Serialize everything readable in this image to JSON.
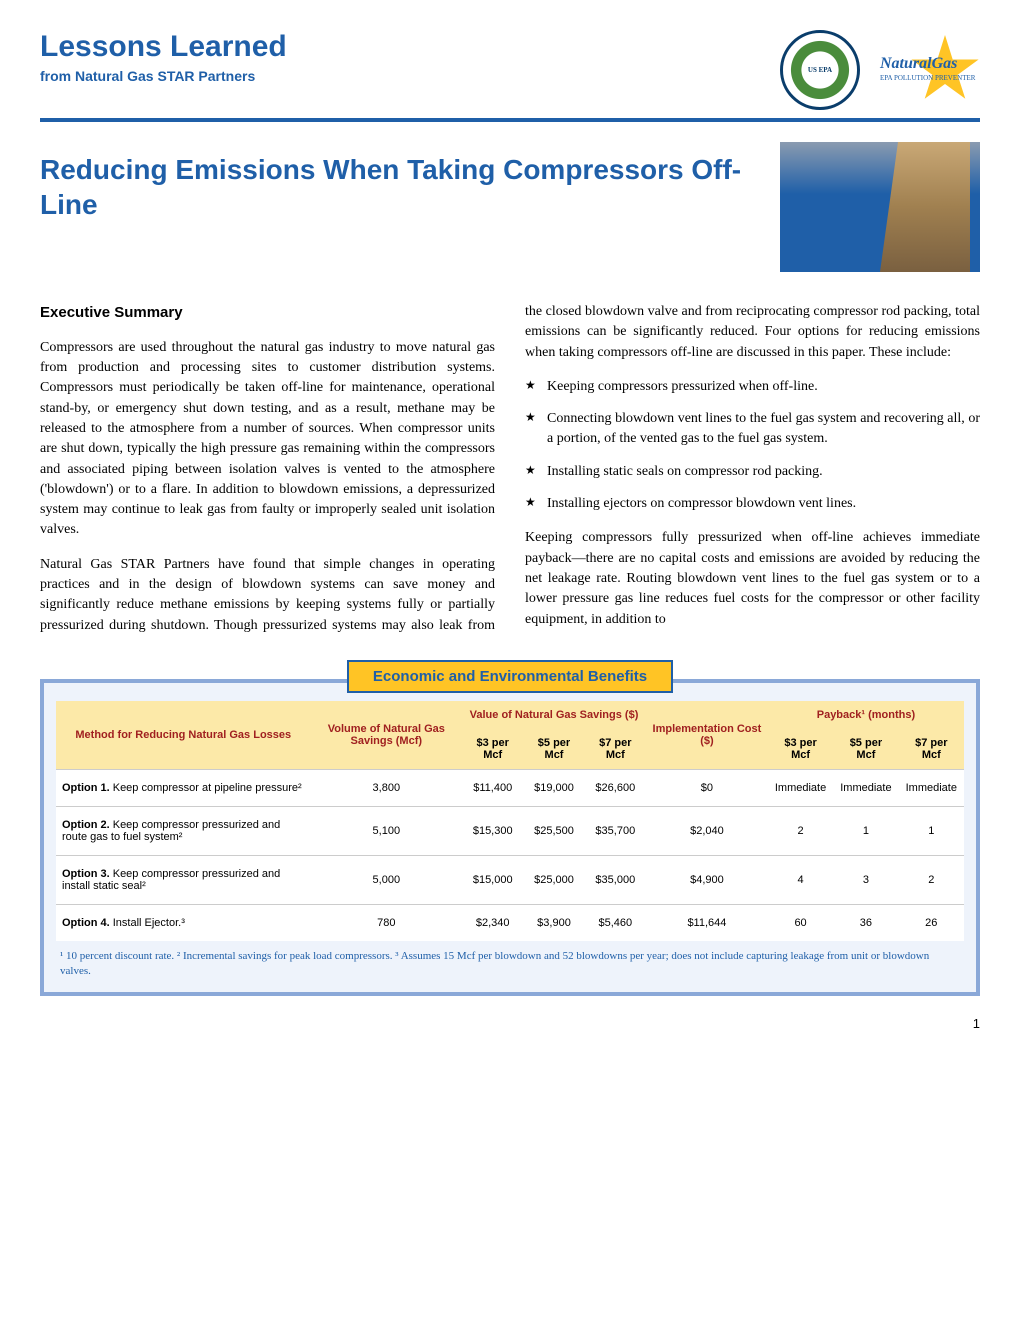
{
  "header": {
    "lessons": "Lessons Learned",
    "from": "from Natural Gas STAR Partners",
    "epa_alt": "US EPA",
    "star_label": "NaturalGas",
    "star_sublabel": "EPA POLLUTION PREVENTER"
  },
  "title": "Reducing Emissions When Taking Compressors Off-Line",
  "body": {
    "exec_heading": "Executive Summary",
    "p1": "Compressors are used throughout the natural gas industry to move natural gas from production and processing sites to customer distribution systems.  Compressors must periodically be taken off-line for maintenance, operational stand-by, or emergency shut down testing, and as a result, methane may be released to the atmosphere from a number of sources.  When compressor units are shut down, typically the high pressure gas remaining within the compressors and associated piping between isolation valves is vented to the atmosphere ('blowdown')  or to a flare.  In addition to blowdown emissions, a depressurized system may continue to leak gas from faulty or improperly sealed unit isolation valves.",
    "p2": "Natural Gas STAR Partners have found that simple changes in operating practices and in the design of blowdown systems can save money and significantly reduce methane emissions by keeping systems fully or partially pressurized during shutdown. Though pressurized systems may also leak from the closed blowdown valve and from reciprocating compressor rod packing, total emissions can be significantly reduced.  Four options for reducing emissions when taking compressors off-line are discussed in this paper.  These include:",
    "bullets": [
      "Keeping compressors pressurized when off-line.",
      "Connecting blowdown vent lines to the fuel gas system and recovering all, or a portion, of the vented gas to the fuel gas system.",
      "Installing static seals on compressor rod packing.",
      "Installing ejectors on compressor blowdown vent lines."
    ],
    "p3": "Keeping compressors fully pressurized when off-line achieves immediate payback—there are no capital costs and emissions are avoided by reducing the net leakage rate. Routing blowdown vent lines to the fuel gas system or to a lower pressure gas line reduces fuel costs for the compressor or other facility equipment, in addition to"
  },
  "benefits": {
    "title": "Economic and Environmental Benefits",
    "headers": {
      "method": "Method for Reducing Natural Gas Losses",
      "volume": "Volume of Natural Gas Savings (Mcf)",
      "value": "Value of Natural Gas Savings ($)",
      "impl": "Implementation Cost ($)",
      "payback": "Payback¹ (months)",
      "p3": "$3 per Mcf",
      "p5": "$5 per Mcf",
      "p7": "$7 per Mcf",
      "pb3": "$3 per Mcf",
      "pb5": "$5 per Mcf",
      "pb7": "$7 per Mcf"
    },
    "rows": [
      {
        "opt": "Option 1.",
        "desc": " Keep compressor at pipeline pressure²",
        "vol": "3,800",
        "v3": "$11,400",
        "v5": "$19,000",
        "v7": "$26,600",
        "cost": "$0",
        "pb3": "Immediate",
        "pb5": "Immediate",
        "pb7": "Immediate"
      },
      {
        "opt": "Option 2.",
        "desc": " Keep compressor pressurized and route gas to fuel system²",
        "vol": "5,100",
        "v3": "$15,300",
        "v5": "$25,500",
        "v7": "$35,700",
        "cost": "$2,040",
        "pb3": "2",
        "pb5": "1",
        "pb7": "1"
      },
      {
        "opt": "Option 3.",
        "desc": " Keep compressor pressurized and install static seal²",
        "vol": "5,000",
        "v3": "$15,000",
        "v5": "$25,000",
        "v7": "$35,000",
        "cost": "$4,900",
        "pb3": "4",
        "pb5": "3",
        "pb7": "2"
      },
      {
        "opt": "Option 4.",
        "desc": " Install Ejector.³",
        "vol": "780",
        "v3": "$2,340",
        "v5": "$3,900",
        "v7": "$5,460",
        "cost": "$11,644",
        "pb3": "60",
        "pb5": "36",
        "pb7": "26"
      }
    ],
    "footnote": "¹ 10 percent discount rate.   ² Incremental savings for peak load compressors. ³ Assumes 15 Mcf per blowdown and 52 blowdowns per year; does not include capturing leakage from unit or blowdown valves."
  },
  "page_num": "1"
}
